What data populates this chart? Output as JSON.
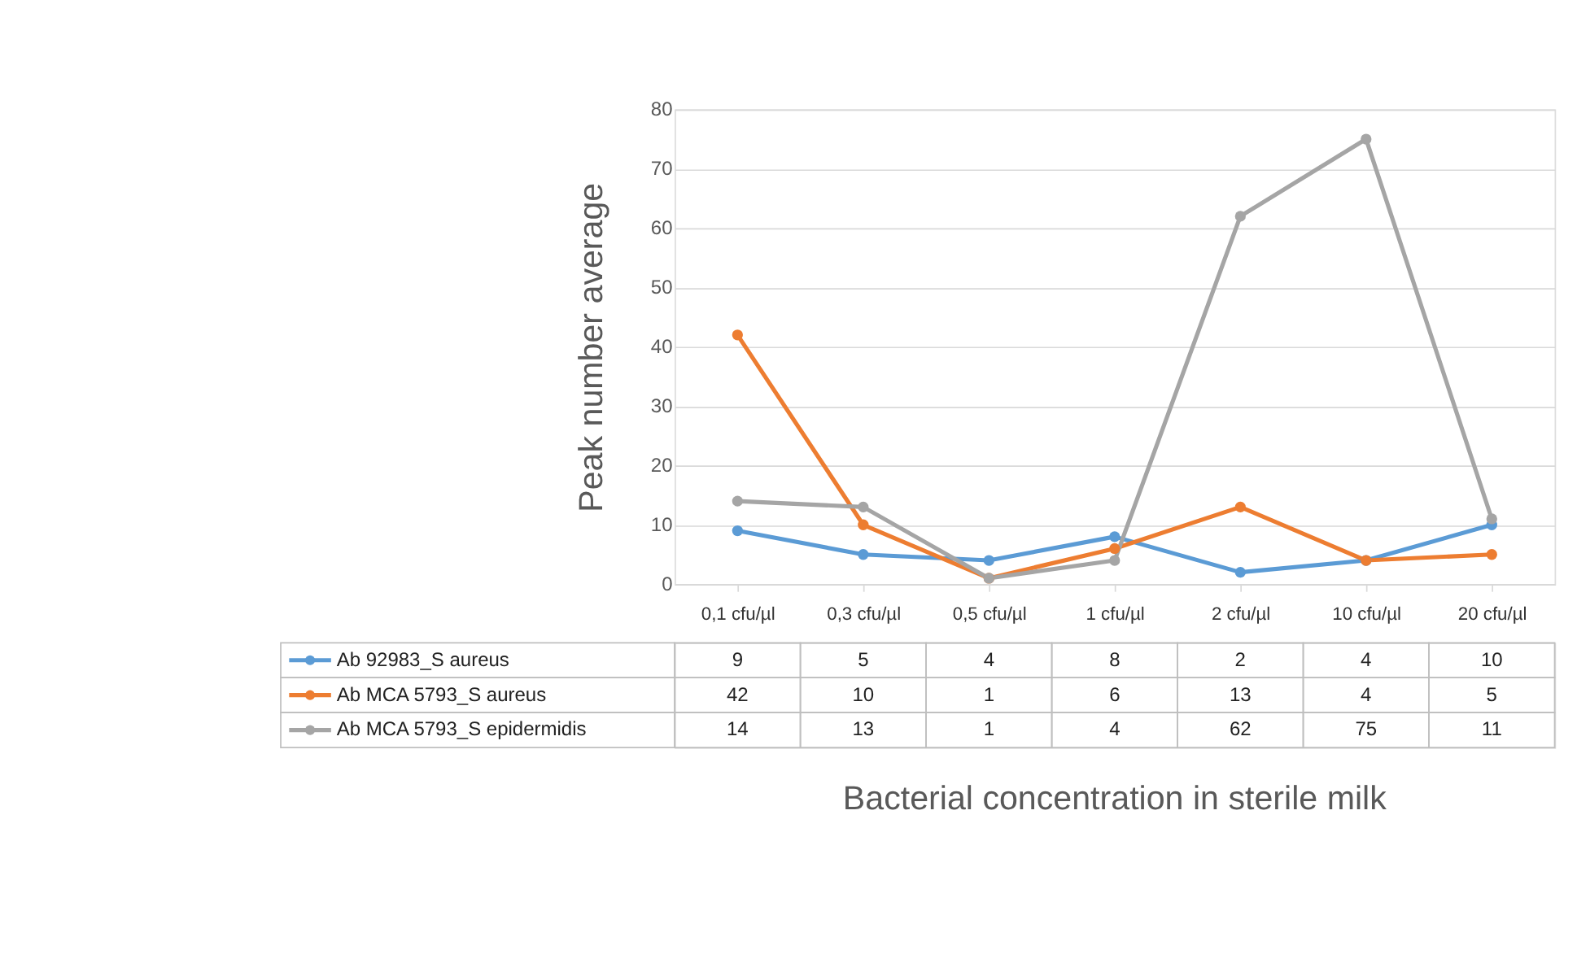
{
  "chart_data": {
    "type": "line",
    "xlabel": "Bacterial concentration in sterile milk",
    "ylabel": "Peak number average",
    "categories": [
      "0,1 cfu/µl",
      "0,3 cfu/µl",
      "0,5 cfu/µl",
      "1 cfu/µl",
      "2 cfu/µl",
      "10 cfu/µl",
      "20 cfu/µl"
    ],
    "series": [
      {
        "name": "Ab 92983_S aureus",
        "color": "#5b9bd5",
        "values": [
          9,
          5,
          4,
          8,
          2,
          4,
          10
        ]
      },
      {
        "name": "Ab MCA 5793_S aureus",
        "color": "#ed7d31",
        "values": [
          42,
          10,
          1,
          6,
          13,
          4,
          5
        ]
      },
      {
        "name": "Ab MCA 5793_S epidermidis",
        "color": "#a5a5a5",
        "values": [
          14,
          13,
          1,
          4,
          62,
          75,
          11
        ]
      }
    ],
    "ylim": [
      0,
      80
    ],
    "yticks": [
      0,
      10,
      20,
      30,
      40,
      50,
      60,
      70,
      80
    ],
    "grid": "y",
    "marker": "circle",
    "line_style": "solid",
    "legend": "bottom",
    "data_labels": true
  }
}
